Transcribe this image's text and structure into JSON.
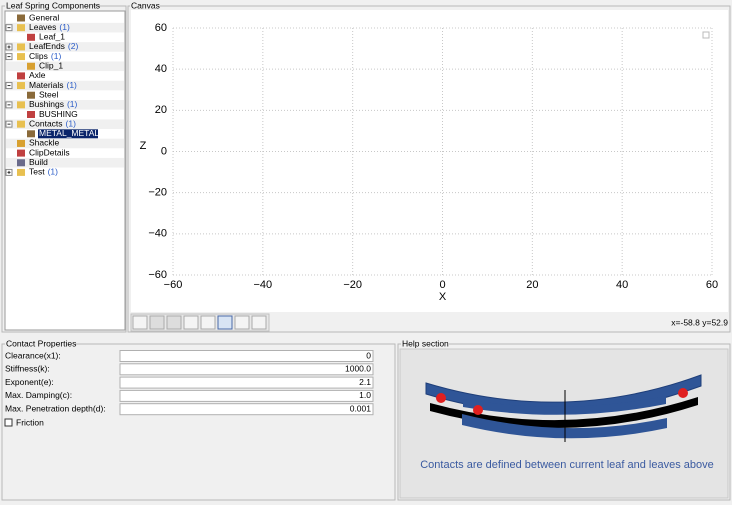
{
  "tree": {
    "title": "Leaf Spring Components",
    "items": [
      {
        "label": "General"
      },
      {
        "label": "Leaves",
        "count": "(1)",
        "children": [
          {
            "label": "Leaf_1"
          }
        ]
      },
      {
        "label": "LeafEnds",
        "count": "(2)",
        "expanded": false
      },
      {
        "label": "Clips",
        "count": "(1)",
        "children": [
          {
            "label": "Clip_1"
          }
        ]
      },
      {
        "label": "Axle"
      },
      {
        "label": "Materials",
        "count": "(1)",
        "children": [
          {
            "label": "Steel"
          }
        ]
      },
      {
        "label": "Bushings",
        "count": "(1)",
        "children": [
          {
            "label": "BUSHING"
          }
        ]
      },
      {
        "label": "Contacts",
        "count": "(1)",
        "children": [
          {
            "label": "METAL_METAL",
            "selected": true
          }
        ]
      },
      {
        "label": "Shackle"
      },
      {
        "label": "ClipDetails"
      },
      {
        "label": "Build"
      },
      {
        "label": "Test",
        "count": "(1)",
        "expanded": false
      }
    ]
  },
  "canvas": {
    "title": "Canvas",
    "status": "x=-58.8 y=52.9",
    "chart_data": {
      "type": "scatter",
      "xlabel": "X",
      "ylabel": "Z",
      "xlim": [
        -60,
        60
      ],
      "ylim": [
        -60,
        60
      ],
      "xticks": [
        {
          "value": -60,
          "label": "−60"
        },
        {
          "value": -40,
          "label": "−40"
        },
        {
          "value": -20,
          "label": "−20"
        },
        0,
        20,
        40,
        60
      ],
      "yticks": [
        {
          "value": -60,
          "label": "−60"
        },
        {
          "value": -40,
          "label": "−40"
        },
        {
          "value": -20,
          "label": "−20"
        },
        0,
        20,
        40,
        60
      ],
      "grid": true
    }
  },
  "properties": {
    "title": "Contact Properties",
    "rows": [
      {
        "label": "Clearance(x1):",
        "value": "0"
      },
      {
        "label": "Stiffness(k):",
        "value": "1000.0"
      },
      {
        "label": "Exponent(e):",
        "value": "2.1"
      },
      {
        "label": "Max. Damping(c):",
        "value": "1.0"
      },
      {
        "label": "Max. Penetration depth(d):",
        "value": "0.001"
      }
    ],
    "checkbox": "Friction"
  },
  "help": {
    "title": "Help section",
    "caption": "Contacts are defined between current leaf and leaves above"
  }
}
